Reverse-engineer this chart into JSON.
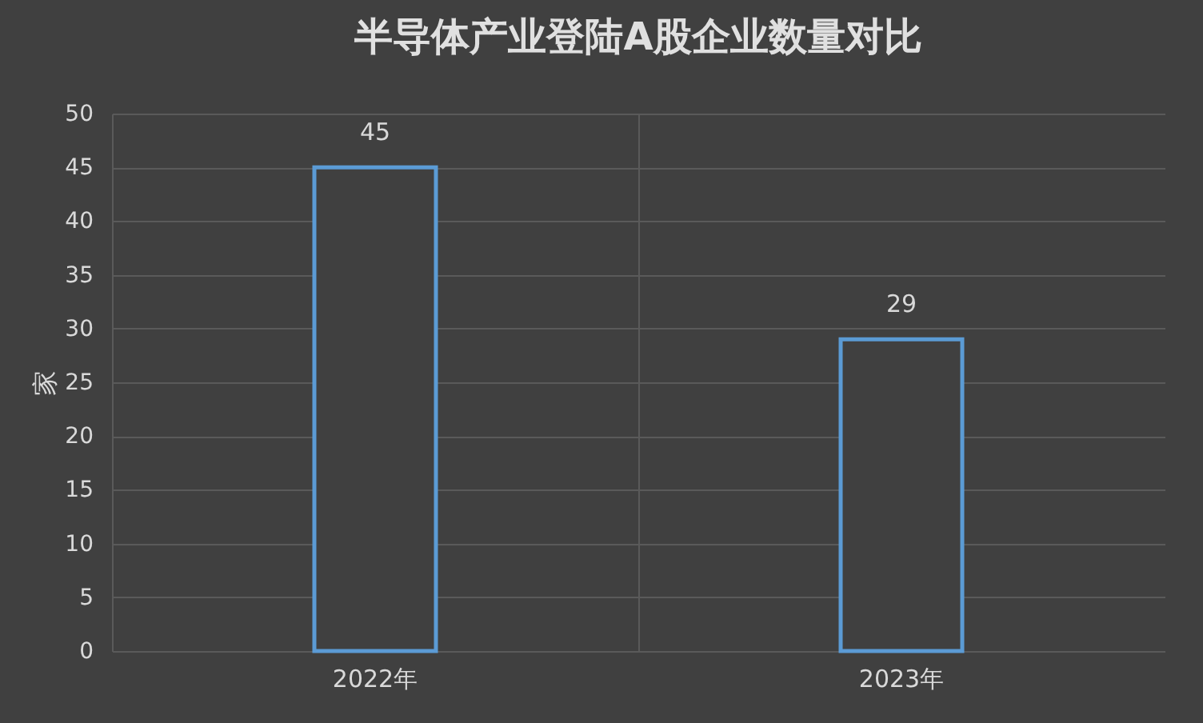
{
  "chart_data": {
    "type": "bar",
    "title": "半导体产业登陆A股企业数量对比",
    "ylabel": "家",
    "categories": [
      "2022年",
      "2023年"
    ],
    "values": [
      45,
      29
    ],
    "color": "#5b9bd5",
    "ylim": [
      0,
      50
    ],
    "yticks": [
      0,
      5,
      10,
      15,
      20,
      25,
      30,
      35,
      40,
      45,
      50
    ],
    "grid": true,
    "data_labels": true
  }
}
